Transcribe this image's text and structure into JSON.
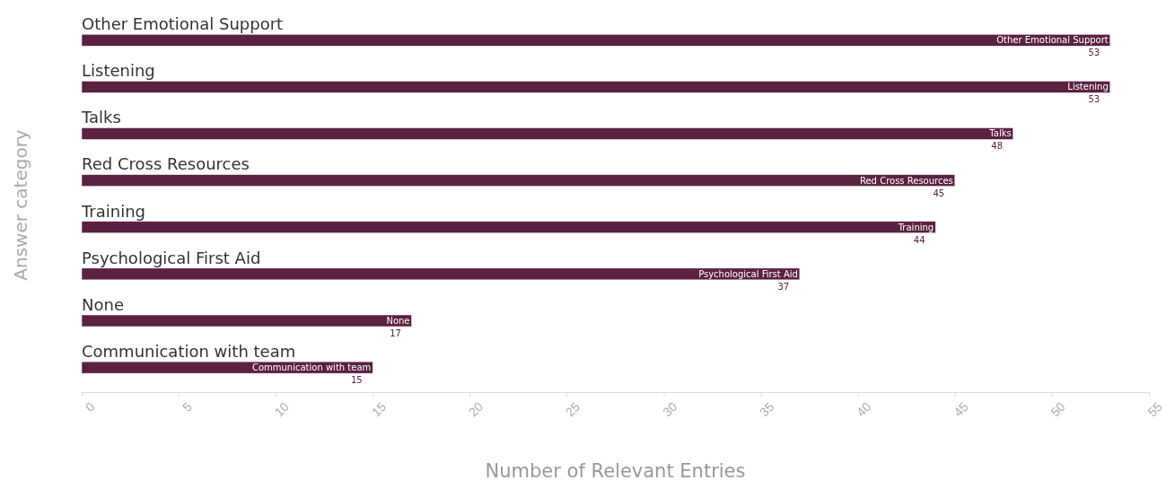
{
  "chart_data": {
    "type": "bar",
    "orientation": "horizontal",
    "xlabel": "Number of Relevant Entries",
    "ylabel": "Answer category",
    "categories": [
      "Other Emotional Support",
      "Listening",
      "Talks",
      "Red Cross Resources",
      "Training",
      "Psychological First Aid",
      "None",
      "Communication with team"
    ],
    "values": [
      53,
      53,
      48,
      45,
      44,
      37,
      17,
      15
    ],
    "color": "#5b2141",
    "data_labels": true,
    "xlim": [
      0,
      55
    ],
    "xticks": [
      0,
      5,
      10,
      15,
      20,
      25,
      30,
      35,
      40,
      45,
      50,
      55
    ],
    "grid": false
  }
}
